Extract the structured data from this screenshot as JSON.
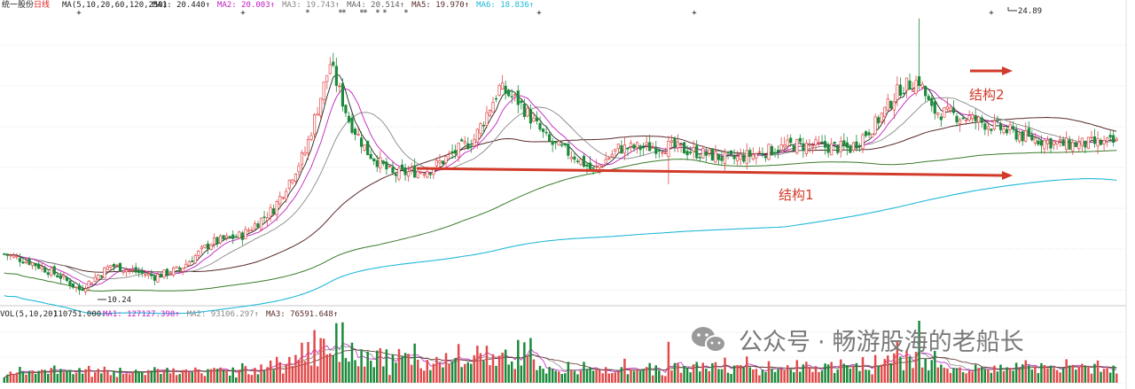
{
  "stock": {
    "title": "统一股份日线",
    "title_prefix": "统一股份",
    "title_suffix": "日线",
    "ma_params": "MA(5,10,20,60,120,250)",
    "ma_readouts": [
      {
        "label": "MA1:",
        "value": "20.440",
        "arrow": "↑",
        "color": "#222222"
      },
      {
        "label": "MA2:",
        "value": "20.003",
        "arrow": "↑",
        "color": "#c020c0"
      },
      {
        "label": "MA3:",
        "value": "19.743",
        "arrow": "↑",
        "color": "#888888"
      },
      {
        "label": "MA4:",
        "value": "20.514",
        "arrow": "↑",
        "color": "#666666"
      },
      {
        "label": "MA5:",
        "value": "19.970",
        "arrow": "↑",
        "color": "#5a2a2a"
      },
      {
        "label": "MA6:",
        "value": "18.836",
        "arrow": "↑",
        "color": "#20b8d8"
      }
    ]
  },
  "volume": {
    "params": "VOL(5,10,20)",
    "value": "110751.000",
    "arrow": "↓",
    "ma_readouts": [
      {
        "label": "MA1:",
        "value": "127127.398",
        "arrow": "↑",
        "color": "#c020c0"
      },
      {
        "label": "MA2:",
        "value": "93106.297",
        "arrow": "↑",
        "color": "#888888"
      },
      {
        "label": "MA3:",
        "value": "76591.648",
        "arrow": "↑",
        "color": "#5a2a2a"
      }
    ]
  },
  "annotations": {
    "high_label": "24.89",
    "low_label": "10.24",
    "structure1": "结构1",
    "structure2": "结构2"
  },
  "watermark": {
    "prefix": "公众号",
    "dot": "·",
    "name": "畅游股海的老船长"
  },
  "colors": {
    "up": "#e24a4a",
    "down": "#1a8a3a",
    "arrow": "#d23a2a",
    "ma5": "#222222",
    "ma10": "#c020c0",
    "ma20": "#888888",
    "ma60": "#5a2a2a",
    "ma120": "#3a7a2a",
    "ma250": "#20b8d8",
    "grid": "#d8d8d8"
  },
  "chart_data": {
    "type": "candlestick",
    "y_range_price": [
      9.8,
      25.3
    ],
    "high": 24.89,
    "low": 10.24,
    "anchors": [
      [
        0,
        12.4
      ],
      [
        8,
        12.0
      ],
      [
        18,
        11.2
      ],
      [
        24,
        10.5
      ],
      [
        34,
        11.8
      ],
      [
        48,
        11.2
      ],
      [
        56,
        11.6
      ],
      [
        66,
        13.0
      ],
      [
        76,
        13.4
      ],
      [
        86,
        14.8
      ],
      [
        96,
        17.8
      ],
      [
        104,
        22.5
      ],
      [
        110,
        19.5
      ],
      [
        116,
        17.8
      ],
      [
        124,
        16.6
      ],
      [
        136,
        16.9
      ],
      [
        150,
        18.5
      ],
      [
        158,
        21.2
      ],
      [
        164,
        20.5
      ],
      [
        174,
        18.3
      ],
      [
        182,
        17.6
      ],
      [
        188,
        16.8
      ],
      [
        196,
        18.0
      ],
      [
        212,
        18.1
      ],
      [
        232,
        17.4
      ],
      [
        252,
        18.2
      ],
      [
        270,
        18.0
      ],
      [
        278,
        19.3
      ],
      [
        286,
        21.2
      ],
      [
        292,
        21.6
      ],
      [
        296,
        20.0
      ],
      [
        308,
        19.6
      ],
      [
        326,
        18.6
      ],
      [
        338,
        18.2
      ],
      [
        355,
        18.3
      ]
    ],
    "candle_count": 356,
    "seed": 7
  }
}
